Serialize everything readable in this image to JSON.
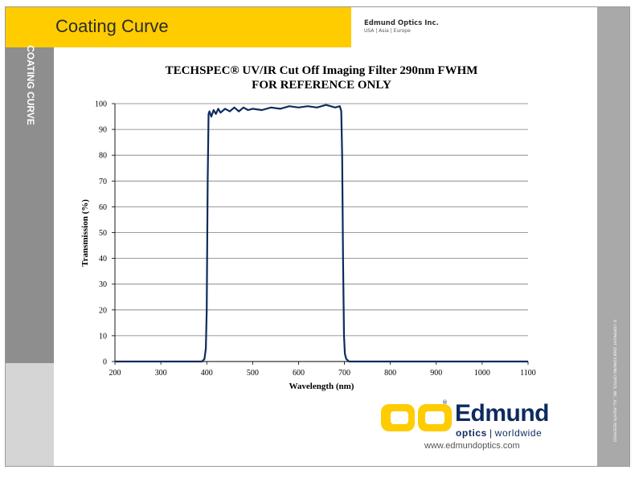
{
  "header": {
    "title": "Coating Curve",
    "company": "Edmund Optics Inc.",
    "regions": "USA | Asia | Europe"
  },
  "sidebar": {
    "label": "COATING CURVE"
  },
  "copyright": "© COPYRIGHT 2008 EDMUND OPTICS, INC. ALL RIGHTS RESERVED",
  "logo": {
    "word": "Edmund",
    "registered": "®",
    "sub_bold": "optics",
    "sub_sep": "|",
    "sub_rest": "worldwide",
    "url": "www.edmundoptics.com"
  },
  "colors": {
    "brand_yellow": "#ffcc00",
    "sidebar_grey": "#8e8e8e",
    "curve": "#0d2b5e",
    "logo_blue": "#0d2b5e"
  },
  "chart_data": {
    "type": "line",
    "title": "TECHSPEC® UV/IR Cut Off Imaging Filter 290nm FWHM",
    "subtitle": "FOR REFERENCE ONLY",
    "xlabel": "Wavelength (nm)",
    "ylabel": "Transmission (%)",
    "xlim": [
      200,
      1100
    ],
    "ylim": [
      0,
      100
    ],
    "xticks": [
      200,
      300,
      400,
      500,
      600,
      700,
      800,
      900,
      1000,
      1100
    ],
    "yticks": [
      0,
      10,
      20,
      30,
      40,
      50,
      60,
      70,
      80,
      90,
      100
    ],
    "grid": "horizontal",
    "series": [
      {
        "x": [
          200,
          300,
          390,
          395,
          398,
          400,
          402,
          404,
          406,
          410,
          415,
          420,
          425,
          430,
          440,
          450,
          460,
          470,
          480,
          490,
          500,
          520,
          540,
          560,
          580,
          600,
          620,
          640,
          660,
          680,
          690,
          693,
          695,
          697,
          699,
          701,
          704,
          710,
          800,
          1100
        ],
        "y": [
          0,
          0,
          0,
          1,
          5,
          20,
          70,
          96,
          97,
          95,
          97.5,
          96,
          98,
          96.5,
          98,
          97,
          98.5,
          97,
          98.5,
          97.5,
          98,
          97.5,
          98.5,
          98,
          99,
          98.5,
          99,
          98.5,
          99.5,
          98.5,
          99,
          97,
          80,
          40,
          10,
          3,
          1,
          0,
          0,
          0
        ]
      }
    ]
  }
}
